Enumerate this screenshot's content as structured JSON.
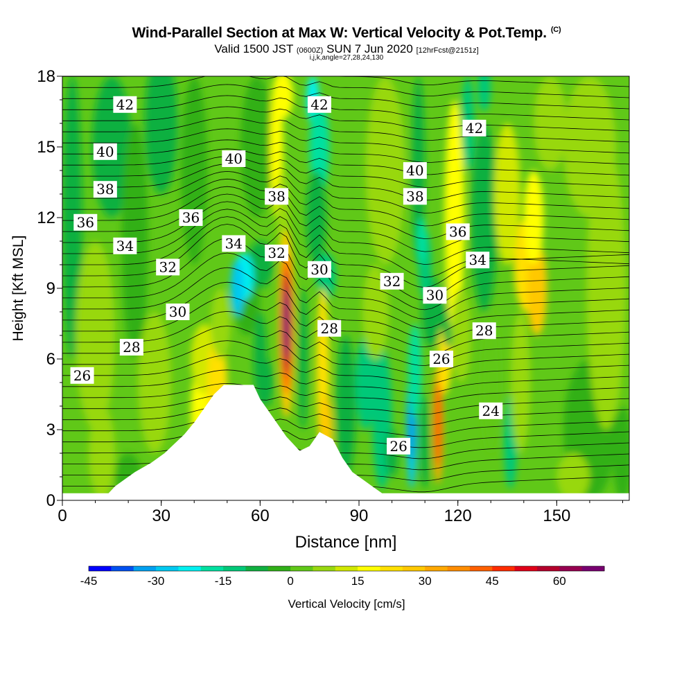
{
  "title": {
    "main": "Wind-Parallel Section at Max W: Vertical Velocity & Pot.Temp.",
    "mark": "(C)",
    "valid_prefix": "Valid 1500 JST",
    "valid_utc": "(0600Z)",
    "valid_date": "SUN 7 Jun 2020",
    "forecast": "[12hrFcst@2151z]",
    "grid_info": "i,j,k,angle=27,28,24,130"
  },
  "chart_data": {
    "type": "heatmap",
    "xlabel": "Distance [nm]",
    "ylabel": "Height [Kft MSL]",
    "xlim": [
      0,
      172
    ],
    "ylim": [
      0,
      18
    ],
    "xticks": [
      0,
      30,
      60,
      90,
      120,
      150
    ],
    "yticks": [
      0,
      3,
      6,
      9,
      12,
      15,
      18
    ],
    "field": "Vertical Velocity",
    "colorbar": {
      "label": "Vertical Velocity [cm/s]",
      "min": -45,
      "max": 70,
      "step": 5,
      "tick_values": [
        -45,
        -30,
        -15,
        0,
        15,
        30,
        45,
        60
      ],
      "colors": [
        "#0000ff",
        "#0050f0",
        "#00a0f0",
        "#00c8f0",
        "#00f0f0",
        "#00e0a0",
        "#00c878",
        "#10b040",
        "#30b018",
        "#60c818",
        "#98d810",
        "#d0e800",
        "#ffff00",
        "#ffe000",
        "#ffc800",
        "#ffa800",
        "#ff8c00",
        "#ff6000",
        "#ff2c00",
        "#e00018",
        "#b4002c",
        "#960050",
        "#780070"
      ]
    },
    "terrain_profile": [
      [
        0,
        0.3
      ],
      [
        14,
        0.3
      ],
      [
        16,
        0.6
      ],
      [
        19,
        0.9
      ],
      [
        22,
        1.2
      ],
      [
        27,
        1.6
      ],
      [
        31,
        2.0
      ],
      [
        34,
        2.4
      ],
      [
        37,
        2.8
      ],
      [
        40,
        3.3
      ],
      [
        43,
        3.9
      ],
      [
        46,
        4.5
      ],
      [
        49,
        4.9
      ],
      [
        58,
        4.9
      ],
      [
        60,
        4.3
      ],
      [
        62,
        3.9
      ],
      [
        65,
        3.3
      ],
      [
        68,
        2.7
      ],
      [
        70,
        2.4
      ],
      [
        72,
        2.1
      ],
      [
        75,
        2.3
      ],
      [
        78,
        2.9
      ],
      [
        82,
        2.6
      ],
      [
        85,
        1.8
      ],
      [
        88,
        1.2
      ],
      [
        91,
        0.9
      ],
      [
        94,
        0.6
      ],
      [
        97,
        0.3
      ],
      [
        172,
        0.3
      ]
    ],
    "theta_contour_labels": [
      {
        "text": "42",
        "x": 19,
        "y": 16.8
      },
      {
        "text": "42",
        "x": 78,
        "y": 16.8
      },
      {
        "text": "42",
        "x": 125,
        "y": 15.8
      },
      {
        "text": "40",
        "x": 13,
        "y": 14.8
      },
      {
        "text": "40",
        "x": 52,
        "y": 14.5
      },
      {
        "text": "40",
        "x": 107,
        "y": 14.0
      },
      {
        "text": "38",
        "x": 13,
        "y": 13.2
      },
      {
        "text": "38",
        "x": 65,
        "y": 12.9
      },
      {
        "text": "38",
        "x": 107,
        "y": 12.9
      },
      {
        "text": "36",
        "x": 7,
        "y": 11.8
      },
      {
        "text": "36",
        "x": 39,
        "y": 12.0
      },
      {
        "text": "36",
        "x": 120,
        "y": 11.4
      },
      {
        "text": "34",
        "x": 19,
        "y": 10.8
      },
      {
        "text": "34",
        "x": 52,
        "y": 10.9
      },
      {
        "text": "34",
        "x": 126,
        "y": 10.2
      },
      {
        "text": "32",
        "x": 32,
        "y": 9.9
      },
      {
        "text": "32",
        "x": 65,
        "y": 10.5
      },
      {
        "text": "32",
        "x": 100,
        "y": 9.3
      },
      {
        "text": "30",
        "x": 35,
        "y": 8.0
      },
      {
        "text": "30",
        "x": 78,
        "y": 9.8
      },
      {
        "text": "30",
        "x": 113,
        "y": 8.7
      },
      {
        "text": "28",
        "x": 21,
        "y": 6.5
      },
      {
        "text": "28",
        "x": 81,
        "y": 7.3
      },
      {
        "text": "28",
        "x": 128,
        "y": 7.2
      },
      {
        "text": "26",
        "x": 6,
        "y": 5.3
      },
      {
        "text": "26",
        "x": 115,
        "y": 6.0
      },
      {
        "text": "26",
        "x": 102,
        "y": 2.3
      },
      {
        "text": "24",
        "x": 130,
        "y": 3.8
      }
    ]
  }
}
